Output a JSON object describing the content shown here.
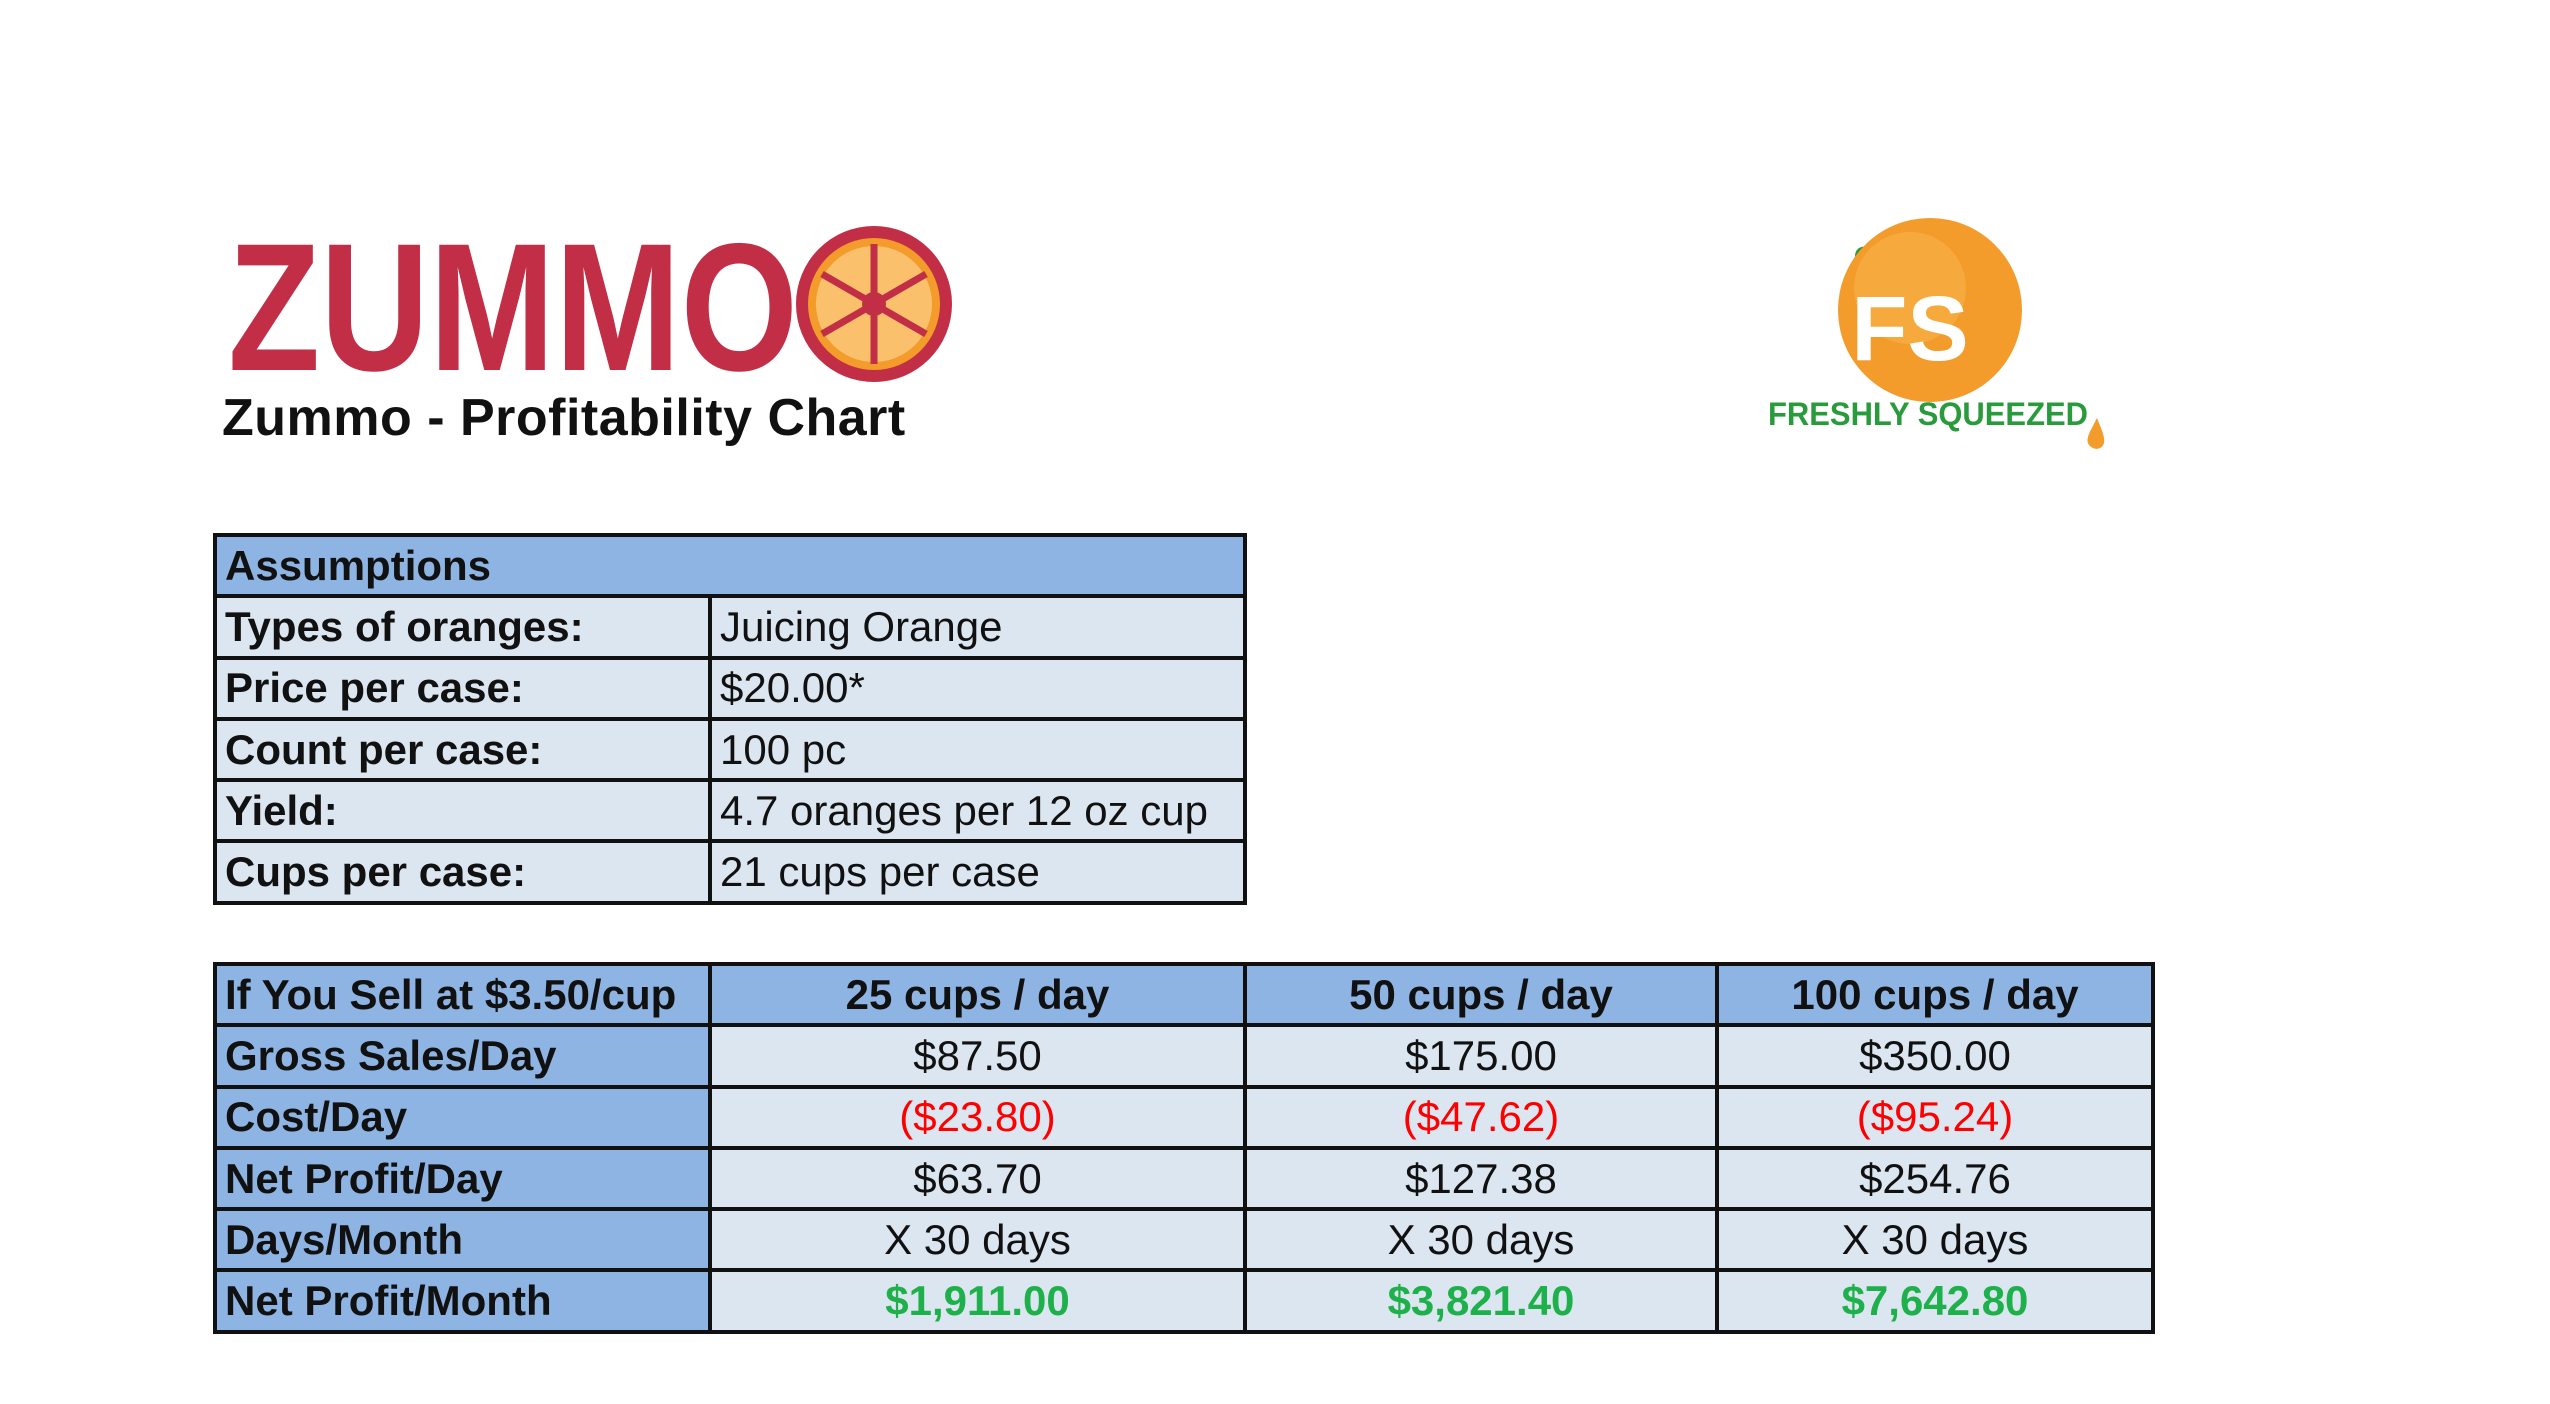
{
  "header": {
    "brand_logo_text": "ZUMMO",
    "title": "Zummo - Profitability Chart",
    "partner_logo_monogram": "FS",
    "partner_logo_text": "FRESHLY SQUEEZED"
  },
  "colors": {
    "zummo_red": "#c22e46",
    "orange": "#f39b2b",
    "header_blue": "#8eb4e3",
    "cell_blue": "#dce6f1",
    "negative_red": "#ff0000",
    "profit_green": "#1eb04a",
    "freshly_green": "#2a9b3c"
  },
  "assumptions": {
    "title": "Assumptions",
    "rows": [
      {
        "label": "Types of oranges:",
        "value": "Juicing Orange"
      },
      {
        "label": "Price per case:",
        "value": "$20.00*"
      },
      {
        "label": "Count per case:",
        "value": "100 pc"
      },
      {
        "label": "Yield:",
        "value": "4.7 oranges per 12 oz cup"
      },
      {
        "label": "Cups per case:",
        "value": "21 cups per case"
      }
    ]
  },
  "sales": {
    "corner": "If You Sell at $3.50/cup",
    "columns": [
      "25 cups / day",
      "50 cups / day",
      "100 cups / day"
    ],
    "rows": [
      {
        "label": "Gross Sales/Day",
        "values": [
          "$87.50",
          "$175.00",
          "$350.00"
        ]
      },
      {
        "label": "Cost/Day",
        "values": [
          "($23.80)",
          "($47.62)",
          "($95.24)"
        ]
      },
      {
        "label": "Net Profit/Day",
        "values": [
          "$63.70",
          "$127.38",
          "$254.76"
        ]
      },
      {
        "label": "Days/Month",
        "values": [
          "X 30 days",
          "X 30 days",
          "X 30 days"
        ]
      },
      {
        "label": "Net Profit/Month",
        "values": [
          "$1,911.00",
          "$3,821.40",
          "$7,642.80"
        ]
      }
    ]
  }
}
